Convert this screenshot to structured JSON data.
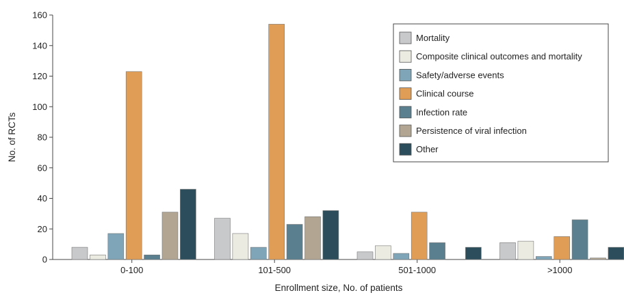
{
  "chart_data": {
    "type": "bar",
    "xlabel": "Enrollment size, No. of patients",
    "ylabel": "No. of RCTs",
    "ylim": [
      0,
      160
    ],
    "yticks": [
      0,
      20,
      40,
      60,
      80,
      100,
      120,
      140,
      160
    ],
    "categories": [
      "0-100",
      "101-500",
      "501-1000",
      ">1000"
    ],
    "series": [
      {
        "name": "Mortality",
        "color": "#c8c9cb",
        "values": [
          8,
          27,
          5,
          11
        ]
      },
      {
        "name": "Composite clinical outcomes and mortality",
        "color": "#ecebe2",
        "values": [
          3,
          17,
          9,
          12
        ]
      },
      {
        "name": "Safety/adverse events",
        "color": "#7fa5b8",
        "values": [
          17,
          8,
          4,
          2
        ]
      },
      {
        "name": "Clinical course",
        "color": "#e09d56",
        "values": [
          123,
          154,
          31,
          15
        ]
      },
      {
        "name": "Infection rate",
        "color": "#5a7f8f",
        "values": [
          3,
          23,
          11,
          26
        ]
      },
      {
        "name": "Persistence of viral infection",
        "color": "#b2a692",
        "values": [
          31,
          28,
          0,
          1
        ]
      },
      {
        "name": "Other",
        "color": "#2c4e5c",
        "values": [
          46,
          32,
          8,
          8
        ]
      }
    ],
    "legend_position": "top-right",
    "grid": false
  }
}
